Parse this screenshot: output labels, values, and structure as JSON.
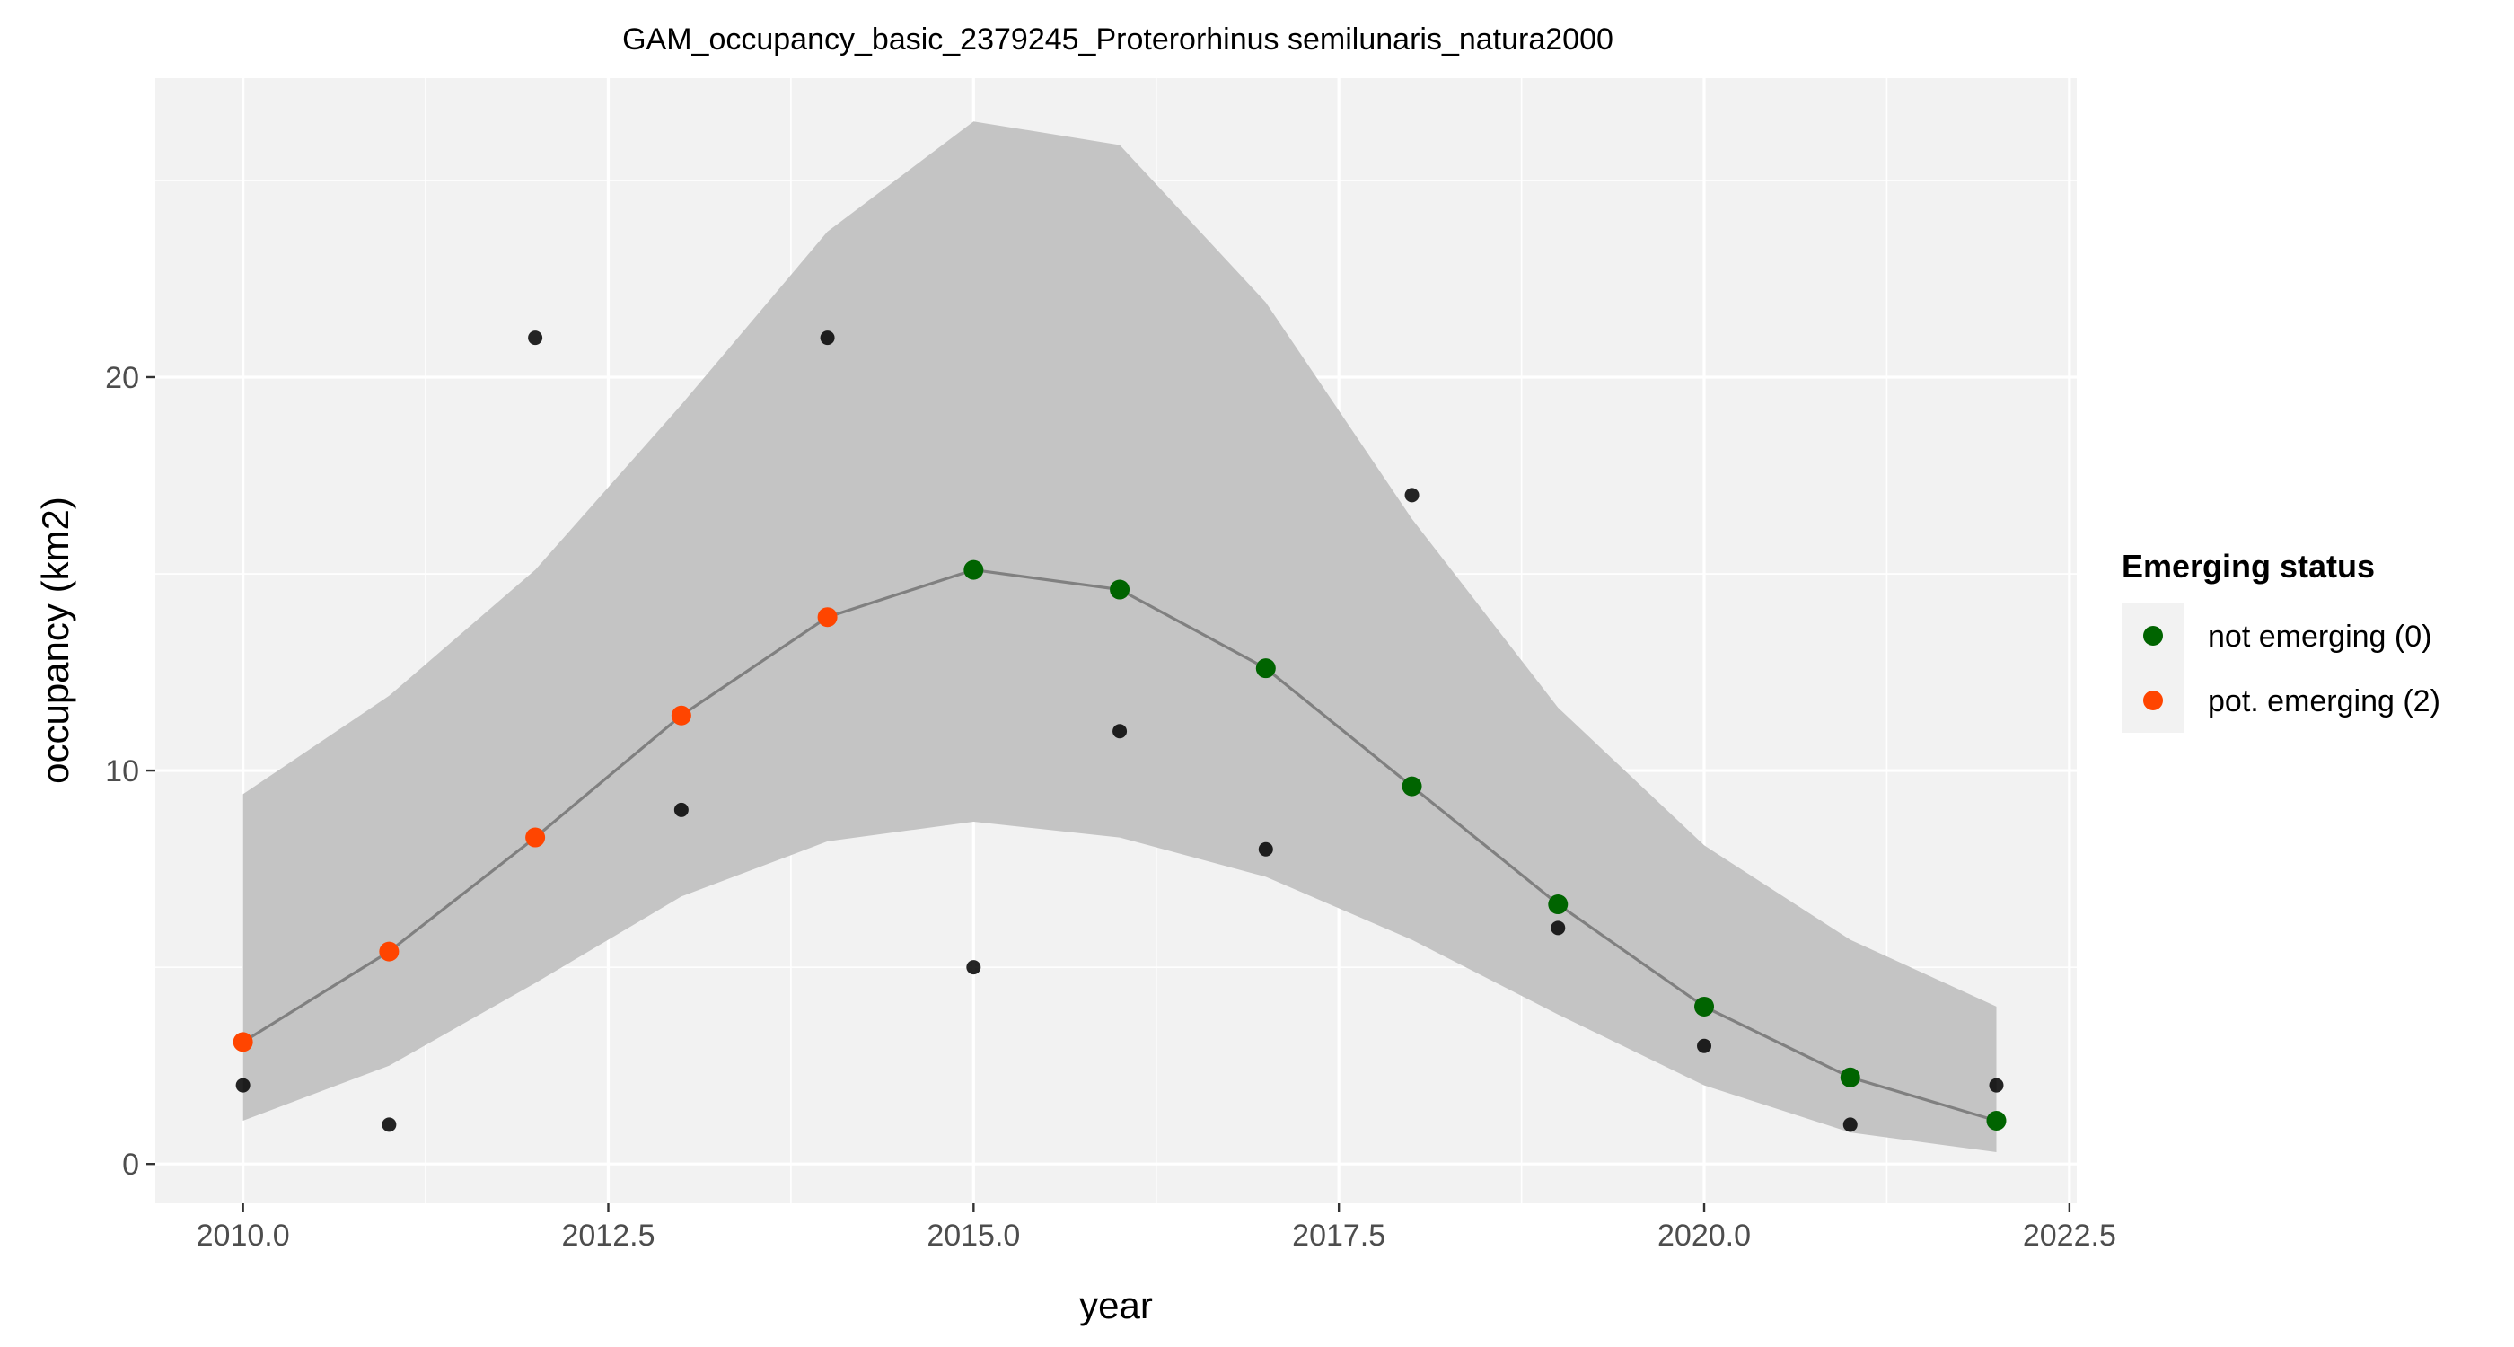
{
  "chart_data": {
    "type": "line",
    "title": "GAM_occupancy_basic_2379245_Proterorhinus semilunaris_natura2000",
    "xlabel": "year",
    "ylabel": "occupancy (km2)",
    "xlim": [
      2009.4,
      2022.55
    ],
    "ylim": [
      -1.0,
      27.6
    ],
    "xticks": [
      2010.0,
      2012.5,
      2015.0,
      2017.5,
      2020.0,
      2022.5
    ],
    "xtick_labels": [
      "2010.0",
      "2012.5",
      "2015.0",
      "2017.5",
      "2020.0",
      "2022.5"
    ],
    "yticks": [
      0,
      10,
      20
    ],
    "ytick_labels": [
      "0",
      "10",
      "20"
    ],
    "grid": true,
    "observed": {
      "x": [
        2010,
        2011,
        2012,
        2013,
        2014,
        2015,
        2016,
        2017,
        2018,
        2019,
        2020,
        2021,
        2022
      ],
      "y": [
        2,
        1,
        21,
        9,
        21,
        5,
        11,
        8,
        17,
        6,
        3,
        1,
        2
      ]
    },
    "fit": {
      "x": [
        2010,
        2011,
        2012,
        2013,
        2014,
        2015,
        2016,
        2017,
        2018,
        2019,
        2020,
        2021,
        2022
      ],
      "y": [
        3.1,
        5.4,
        8.3,
        11.4,
        13.9,
        15.1,
        14.6,
        12.6,
        9.6,
        6.6,
        4.0,
        2.2,
        1.1
      ],
      "lower": [
        1.1,
        2.5,
        4.6,
        6.8,
        8.2,
        8.7,
        8.3,
        7.3,
        5.7,
        3.8,
        2.0,
        0.8,
        0.3
      ],
      "upper": [
        9.4,
        11.9,
        15.1,
        19.3,
        23.7,
        26.5,
        25.9,
        21.9,
        16.4,
        11.6,
        8.1,
        5.7,
        4.0
      ],
      "status": [
        2,
        2,
        2,
        2,
        2,
        0,
        0,
        0,
        0,
        0,
        0,
        0,
        0
      ]
    },
    "legend": {
      "title": "Emerging status",
      "position": "right",
      "entries": [
        {
          "label": "not emerging (0)",
          "status": 0,
          "color": "#006400"
        },
        {
          "label": "pot. emerging (2)",
          "status": 2,
          "color": "#FF4500"
        }
      ]
    },
    "colors": {
      "panel_background": "#F2F2F2",
      "grid": "#FFFFFF",
      "ribbon": "#C4C4C4",
      "fit_line": "#808080",
      "observed_point": "#000000",
      "text": "#000000",
      "tick_text": "#4D4D4D"
    }
  }
}
